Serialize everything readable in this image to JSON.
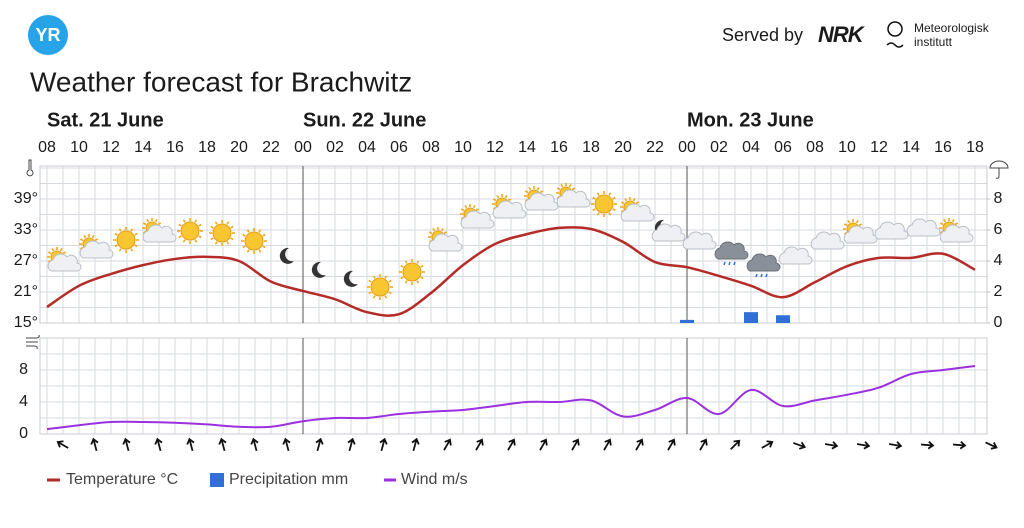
{
  "header": {
    "logo": "YR",
    "served_by": "Served by",
    "nrk": "NRK",
    "met_line1": "Meteorologisk",
    "met_line2": "institutt"
  },
  "chart_data": {
    "type": "line",
    "title": "Weather forecast for Brachwitz",
    "days": [
      "Sat. 21 June",
      "Sun. 22 June",
      "Mon. 23 June"
    ],
    "categories": [
      "08",
      "10",
      "12",
      "14",
      "16",
      "18",
      "20",
      "22",
      "00",
      "02",
      "04",
      "06",
      "08",
      "10",
      "12",
      "14",
      "16",
      "18",
      "20",
      "22",
      "00",
      "02",
      "04",
      "06",
      "08",
      "10",
      "12",
      "14",
      "16",
      "18"
    ],
    "ylim": [
      15,
      45
    ],
    "yticks": [
      {
        "value": 15,
        "label": "15°"
      },
      {
        "value": 21,
        "label": "21°"
      },
      {
        "value": 27,
        "label": "27°"
      },
      {
        "value": 33,
        "label": "33°"
      },
      {
        "value": 39,
        "label": "39°"
      }
    ],
    "y2lim": [
      0,
      10
    ],
    "y2ticks": [
      0,
      2,
      4,
      6,
      8
    ],
    "series": [
      {
        "name": "Temperature °C",
        "color": "#b52b27",
        "values": [
          18.1,
          22.2,
          24.5,
          26.2,
          27.4,
          27.8,
          27.0,
          23.0,
          21.2,
          19.6,
          17.1,
          16.7,
          20.8,
          26.2,
          30.3,
          32.2,
          33.4,
          33.2,
          30.7,
          26.8,
          25.8,
          24.1,
          22.2,
          20.0,
          22.9,
          26.0,
          27.6,
          27.6,
          28.4,
          25.3
        ]
      },
      {
        "name": "Precipitation mm",
        "color": "#2f6fd6",
        "axis": "y2",
        "values": [
          0,
          0,
          0,
          0,
          0,
          0,
          0,
          0,
          0,
          0,
          0,
          0,
          0,
          0,
          0,
          0,
          0,
          0,
          0,
          0,
          0.2,
          0,
          0.7,
          0.5,
          0,
          0,
          0,
          0,
          0,
          0
        ]
      }
    ],
    "wind": {
      "name": "Wind m/s",
      "color": "#9b30e0",
      "ylim": [
        0,
        12
      ],
      "yticks": [
        0,
        4,
        8
      ],
      "values": [
        0.6,
        1.1,
        1.5,
        1.5,
        1.4,
        1.2,
        0.9,
        0.9,
        1.6,
        2.0,
        2.0,
        2.5,
        2.8,
        3.0,
        3.5,
        4.0,
        4.0,
        4.2,
        2.2,
        3.0,
        4.5,
        2.5,
        5.5,
        3.5,
        4.2,
        4.9,
        5.8,
        7.5,
        8.0,
        8.5
      ],
      "directions": [
        300,
        345,
        345,
        345,
        345,
        345,
        345,
        345,
        15,
        15,
        15,
        15,
        30,
        30,
        30,
        30,
        30,
        30,
        30,
        30,
        30,
        45,
        60,
        110,
        100,
        100,
        100,
        95,
        95,
        115
      ]
    }
  }
}
